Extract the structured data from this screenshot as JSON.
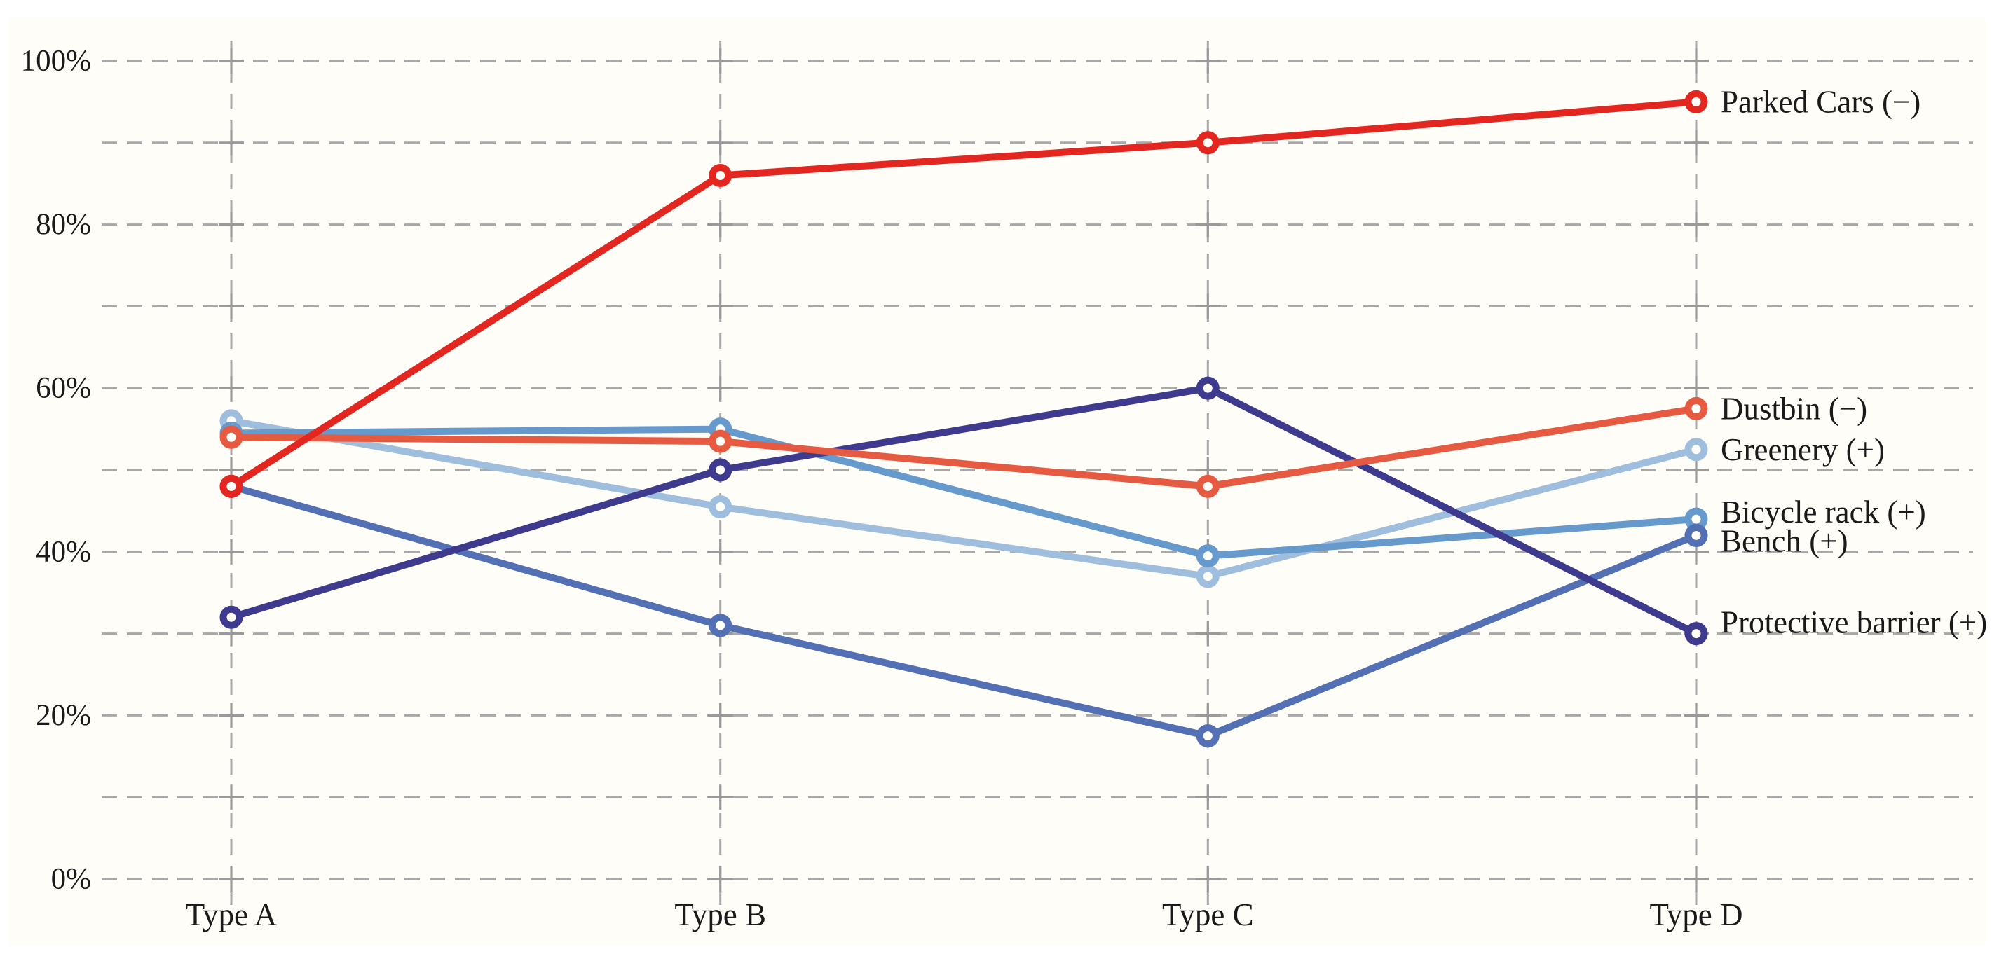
{
  "chart_data": {
    "type": "line",
    "title": "",
    "xlabel": "",
    "ylabel": "",
    "categories": [
      "Type A",
      "Type B",
      "Type C",
      "Type D"
    ],
    "series": [
      {
        "name": "Parked Cars (−)",
        "polarity": "negative",
        "color": "#e3261f",
        "values": [
          48,
          86,
          90,
          95
        ]
      },
      {
        "name": "Dustbin (−)",
        "polarity": "negative",
        "color": "#e55a40",
        "values": [
          54,
          53.5,
          48,
          57.5
        ]
      },
      {
        "name": "Greenery (+)",
        "polarity": "positive",
        "color": "#9fbede",
        "values": [
          56,
          45.5,
          37,
          52.5
        ]
      },
      {
        "name": "Bicycle rack (+)",
        "polarity": "positive",
        "color": "#6699cc",
        "values": [
          54.5,
          55,
          39.5,
          44
        ]
      },
      {
        "name": "Bench (+)",
        "polarity": "positive",
        "color": "#5470b4",
        "values": [
          48,
          31,
          17.5,
          42
        ]
      },
      {
        "name": "Protective barrier (+)",
        "polarity": "positive",
        "color": "#3e3b8e",
        "values": [
          32,
          50,
          60,
          30
        ]
      }
    ],
    "ylim": [
      0,
      100
    ],
    "y_major_ticks": [
      {
        "value": 0,
        "label": "0%"
      },
      {
        "value": 20,
        "label": "20%"
      },
      {
        "value": 40,
        "label": "40%"
      },
      {
        "value": 60,
        "label": "60%"
      },
      {
        "value": 80,
        "label": "80%"
      },
      {
        "value": 100,
        "label": "100%"
      }
    ],
    "y_minor_step": 10,
    "grid": "dashed",
    "legend_position": "inline-right-labels"
  },
  "colors": {
    "grid": "#a8a8a8",
    "tick_cross": "#9a9a9a",
    "text": "#1a1a1a",
    "plot_background": "#fffdf8",
    "page_background": "#ffffff",
    "marker_fill": "#fffdf8"
  }
}
